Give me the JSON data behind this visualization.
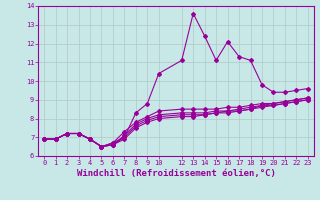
{
  "xlabel": "Windchill (Refroidissement éolien,°C)",
  "bg_color": "#c8e8e8",
  "line_color": "#990099",
  "grid_color": "#b0c8c8",
  "ylim": [
    6,
    14
  ],
  "xlim": [
    -0.5,
    23.5
  ],
  "yticks": [
    6,
    7,
    8,
    9,
    10,
    11,
    12,
    13,
    14
  ],
  "xticks": [
    0,
    1,
    2,
    3,
    4,
    5,
    6,
    7,
    8,
    9,
    10,
    12,
    13,
    14,
    15,
    16,
    17,
    18,
    19,
    20,
    21,
    22,
    23
  ],
  "lines": [
    {
      "x": [
        0,
        1,
        2,
        3,
        4,
        5,
        6,
        7,
        8,
        9,
        10,
        12,
        13,
        14,
        15,
        16,
        17,
        18,
        19,
        20,
        21,
        22,
        23
      ],
      "y": [
        6.9,
        6.9,
        7.2,
        7.2,
        6.9,
        6.5,
        6.7,
        7.0,
        8.3,
        8.8,
        10.4,
        11.1,
        13.6,
        12.4,
        11.1,
        12.1,
        11.3,
        11.1,
        9.8,
        9.4,
        9.4,
        9.5,
        9.6
      ]
    },
    {
      "x": [
        0,
        1,
        2,
        3,
        4,
        5,
        6,
        7,
        8,
        9,
        10,
        12,
        13,
        14,
        15,
        16,
        17,
        18,
        19,
        20,
        21,
        22,
        23
      ],
      "y": [
        6.9,
        6.9,
        7.2,
        7.2,
        6.9,
        6.5,
        6.7,
        7.3,
        7.8,
        8.1,
        8.4,
        8.5,
        8.5,
        8.5,
        8.5,
        8.6,
        8.6,
        8.7,
        8.8,
        8.8,
        8.9,
        9.0,
        9.1
      ]
    },
    {
      "x": [
        0,
        1,
        2,
        3,
        4,
        5,
        6,
        7,
        8,
        9,
        10,
        12,
        13,
        14,
        15,
        16,
        17,
        18,
        19,
        20,
        21,
        22,
        23
      ],
      "y": [
        6.9,
        6.9,
        7.2,
        7.2,
        6.9,
        6.5,
        6.6,
        7.1,
        7.7,
        8.0,
        8.2,
        8.3,
        8.3,
        8.3,
        8.4,
        8.4,
        8.5,
        8.6,
        8.7,
        8.7,
        8.8,
        8.9,
        9.0
      ]
    },
    {
      "x": [
        0,
        1,
        2,
        3,
        4,
        5,
        6,
        7,
        8,
        9,
        10,
        12,
        13,
        14,
        15,
        16,
        17,
        18,
        19,
        20,
        21,
        22,
        23
      ],
      "y": [
        6.9,
        6.9,
        7.2,
        7.2,
        6.9,
        6.5,
        6.6,
        7.0,
        7.6,
        7.9,
        8.1,
        8.2,
        8.2,
        8.2,
        8.3,
        8.4,
        8.4,
        8.5,
        8.6,
        8.7,
        8.8,
        8.9,
        9.0
      ]
    },
    {
      "x": [
        0,
        1,
        2,
        3,
        4,
        5,
        6,
        7,
        8,
        9,
        10,
        12,
        13,
        14,
        15,
        16,
        17,
        18,
        19,
        20,
        21,
        22,
        23
      ],
      "y": [
        6.9,
        6.9,
        7.2,
        7.2,
        6.9,
        6.5,
        6.6,
        6.9,
        7.5,
        7.8,
        8.0,
        8.1,
        8.1,
        8.2,
        8.3,
        8.3,
        8.4,
        8.5,
        8.7,
        8.8,
        8.9,
        9.0,
        9.1
      ]
    }
  ],
  "marker": "D",
  "marker_size": 2,
  "line_width": 0.8,
  "tick_fontsize": 5,
  "xlabel_fontsize": 6.5,
  "tick_color": "#990099",
  "xlabel_color": "#990099",
  "axis_color": "#990099"
}
